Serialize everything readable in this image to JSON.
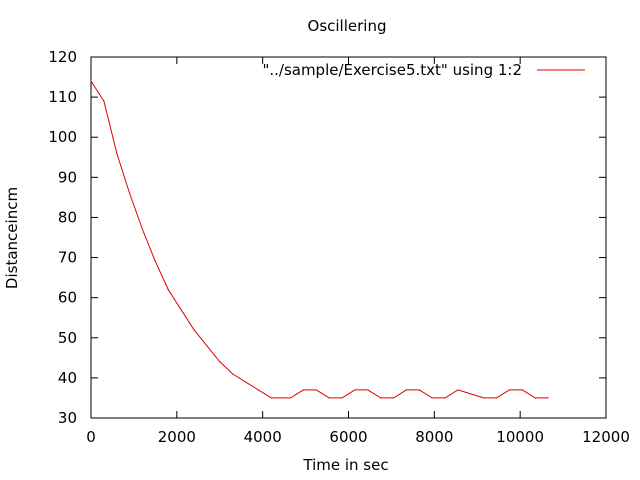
{
  "chart_data": {
    "type": "line",
    "title": "Oscillering",
    "xlabel": "Time in sec",
    "ylabel": "Distanceincm",
    "xlim": [
      0,
      12000
    ],
    "ylim": [
      30,
      120
    ],
    "xticks": [
      0,
      2000,
      4000,
      6000,
      8000,
      10000,
      12000
    ],
    "yticks": [
      30,
      40,
      50,
      60,
      70,
      80,
      90,
      100,
      110,
      120
    ],
    "grid": false,
    "legend_position": "top-right",
    "series": [
      {
        "name": "\"../sample/Exercise5.txt\" using 1:2",
        "color": "#e00000",
        "x": [
          0,
          300,
          600,
          900,
          1200,
          1500,
          1800,
          2100,
          2400,
          2700,
          3000,
          3300,
          3600,
          3900,
          4200,
          4350,
          4650,
          4950,
          5250,
          5550,
          5850,
          6150,
          6450,
          6750,
          7050,
          7350,
          7650,
          7950,
          8250,
          8550,
          8850,
          9150,
          9450,
          9750,
          10050,
          10350,
          10650
        ],
        "y": [
          114,
          109,
          96,
          86,
          77,
          69,
          62,
          57,
          52,
          48,
          44,
          41,
          39,
          37,
          35,
          35,
          35,
          37,
          37,
          35,
          35,
          37,
          37,
          35,
          35,
          37,
          37,
          35,
          35,
          37,
          36,
          35,
          35,
          37,
          37,
          35,
          35
        ]
      }
    ]
  }
}
